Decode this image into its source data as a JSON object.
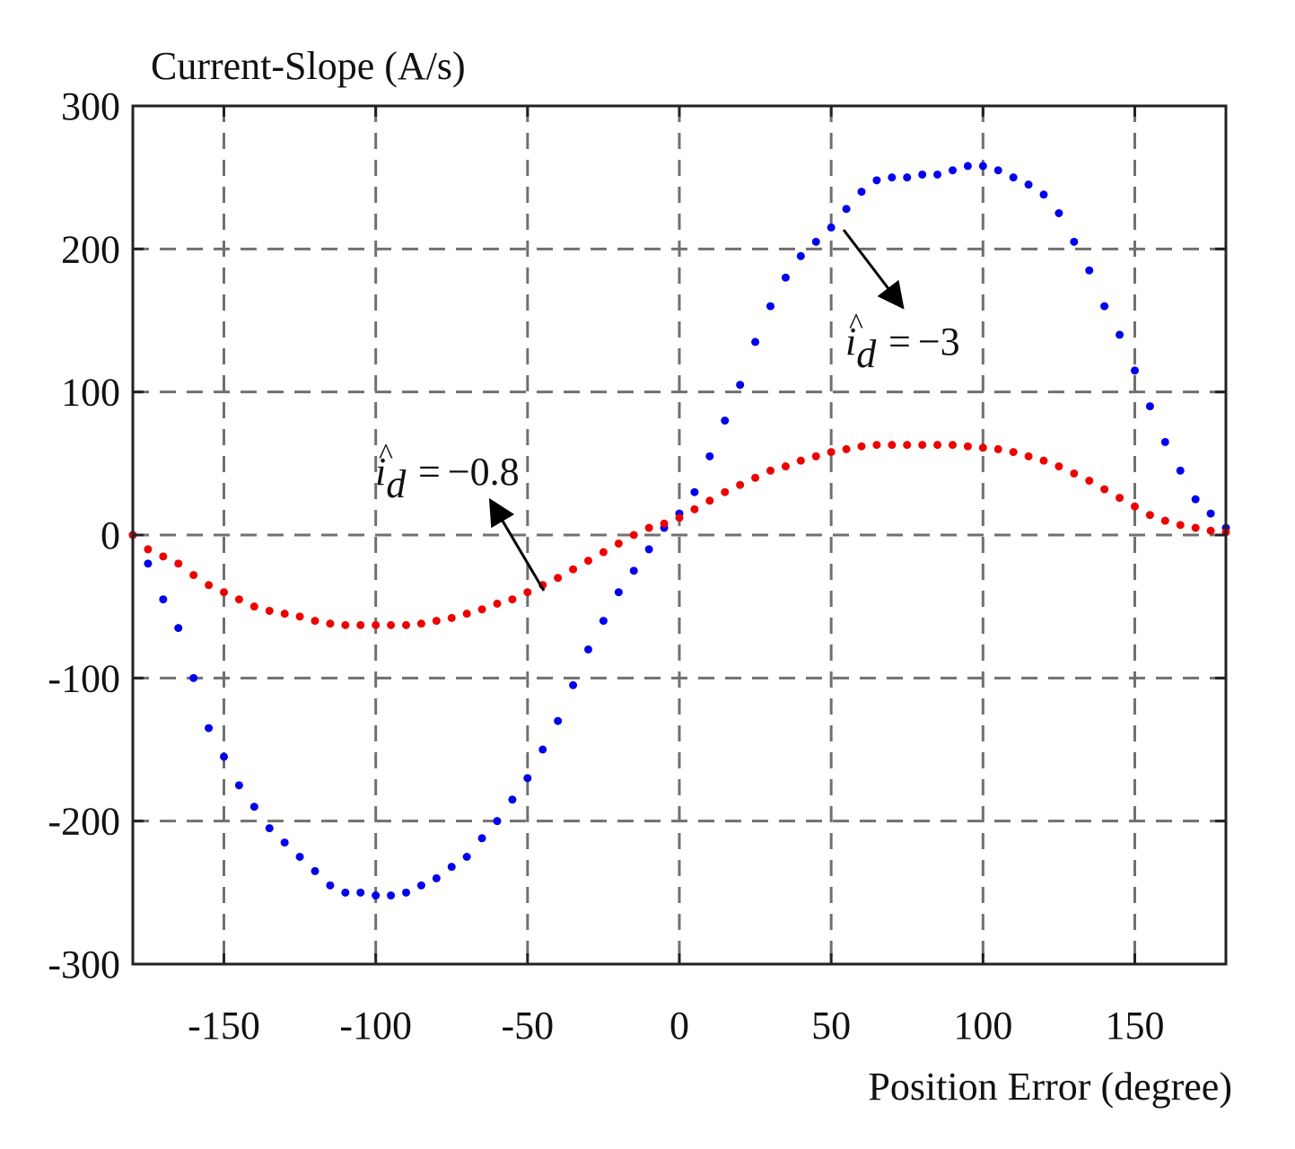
{
  "chart_data": {
    "type": "scatter",
    "ylabel": "Current-Slope (A/s)",
    "xlabel": "Position Error (degree)",
    "xlim": [
      -180,
      180
    ],
    "ylim": [
      -300,
      300
    ],
    "xticks": [
      -150,
      -100,
      -50,
      0,
      50,
      100,
      150
    ],
    "yticks": [
      300,
      200,
      100,
      0,
      -100,
      -200,
      -300
    ],
    "xtick_labels": [
      "-150",
      "-100",
      "-50",
      "0",
      "50",
      "100",
      "150"
    ],
    "ytick_labels": [
      "300",
      "200",
      "100",
      "0",
      "-100",
      "-200",
      "-300"
    ],
    "grid": true,
    "series": [
      {
        "name_label": "i_d = -3",
        "color": "#0000ee",
        "x": [
          -180,
          -175,
          -170,
          -165,
          -160,
          -155,
          -150,
          -145,
          -140,
          -135,
          -130,
          -125,
          -120,
          -115,
          -110,
          -105,
          -100,
          -95,
          -90,
          -85,
          -80,
          -75,
          -70,
          -65,
          -60,
          -55,
          -50,
          -45,
          -40,
          -35,
          -30,
          -25,
          -20,
          -15,
          -10,
          -5,
          0,
          5,
          10,
          15,
          20,
          25,
          30,
          35,
          40,
          45,
          50,
          55,
          60,
          65,
          70,
          75,
          80,
          85,
          90,
          95,
          100,
          105,
          110,
          115,
          120,
          125,
          130,
          135,
          140,
          145,
          150,
          155,
          160,
          165,
          170,
          175,
          180
        ],
        "y": [
          0,
          -20,
          -45,
          -65,
          -100,
          -135,
          -155,
          -175,
          -190,
          -205,
          -215,
          -225,
          -235,
          -245,
          -250,
          -250,
          -252,
          -252,
          -250,
          -245,
          -240,
          -232,
          -225,
          -212,
          -200,
          -185,
          -170,
          -150,
          -130,
          -105,
          -80,
          -60,
          -40,
          -25,
          -10,
          5,
          15,
          30,
          55,
          80,
          105,
          135,
          160,
          180,
          195,
          205,
          215,
          228,
          240,
          248,
          250,
          250,
          252,
          252,
          255,
          258,
          258,
          255,
          250,
          245,
          238,
          225,
          205,
          185,
          160,
          140,
          115,
          90,
          65,
          45,
          25,
          15,
          5
        ]
      },
      {
        "name_label": "i_d = -0.8",
        "color": "#ee0000",
        "x": [
          -180,
          -175,
          -170,
          -165,
          -160,
          -155,
          -150,
          -145,
          -140,
          -135,
          -130,
          -125,
          -120,
          -115,
          -110,
          -105,
          -100,
          -95,
          -90,
          -85,
          -80,
          -75,
          -70,
          -65,
          -60,
          -55,
          -50,
          -45,
          -40,
          -35,
          -30,
          -25,
          -20,
          -15,
          -10,
          -5,
          0,
          5,
          10,
          15,
          20,
          25,
          30,
          35,
          40,
          45,
          50,
          55,
          60,
          65,
          70,
          75,
          80,
          85,
          90,
          95,
          100,
          105,
          110,
          115,
          120,
          125,
          130,
          135,
          140,
          145,
          150,
          155,
          160,
          165,
          170,
          175,
          180
        ],
        "y": [
          0,
          -10,
          -15,
          -20,
          -28,
          -35,
          -40,
          -45,
          -50,
          -53,
          -55,
          -57,
          -60,
          -62,
          -63,
          -63,
          -63,
          -63,
          -63,
          -62,
          -60,
          -58,
          -55,
          -52,
          -48,
          -45,
          -40,
          -35,
          -30,
          -24,
          -18,
          -12,
          -6,
          0,
          5,
          8,
          12,
          18,
          24,
          30,
          35,
          40,
          45,
          48,
          52,
          55,
          58,
          60,
          62,
          63,
          63,
          63,
          63,
          63,
          63,
          62,
          61,
          60,
          58,
          55,
          52,
          48,
          43,
          38,
          32,
          26,
          20,
          14,
          10,
          7,
          5,
          3,
          2
        ]
      }
    ],
    "annotations": [
      {
        "var": "i",
        "subscript": "d",
        "relation": "=",
        "value": "−3"
      },
      {
        "var": "i",
        "subscript": "d",
        "relation": "=",
        "value": "−0.8"
      }
    ]
  }
}
